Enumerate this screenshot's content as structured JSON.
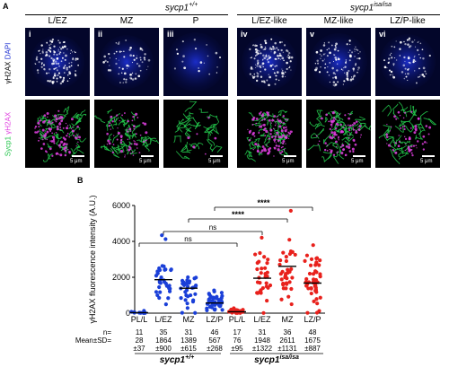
{
  "panel_a": {
    "label": "A",
    "geno_wt": "sycp1",
    "geno_wt_sup": "+/+",
    "geno_mut": "sycp1",
    "geno_mut_sup": "isa/isa",
    "stages": [
      "L/EZ",
      "MZ",
      "P",
      "L/EZ-like",
      "MZ-like",
      "LZ/P-like"
    ],
    "numerals": [
      "i",
      "ii",
      "iii",
      "iv",
      "v",
      "vi"
    ],
    "row1_a": "γH2AX",
    "row1_b": "DAPI",
    "row2_a": "Sycp1",
    "row2_b": "γH2AX",
    "scale": "5 μm",
    "colors": {
      "dapi": "#1c2fd0",
      "sycp1": "#22c44a",
      "h2ax": "#e040e0"
    }
  },
  "panel_b": {
    "label": "B",
    "n_label": "n=",
    "mean_label": "Mean±SD=",
    "geno_wt": "sycp1",
    "geno_wt_sup": "+/+",
    "geno_mut": "sycp1",
    "geno_mut_sup": "isa/isa",
    "sig": [
      "ns",
      "ns",
      "****",
      "****"
    ]
  },
  "chart_data": {
    "type": "scatter",
    "ylabel": "γH2AX fluorescence intensity (A.U.)",
    "ylim": [
      0,
      6000
    ],
    "yticks": [
      "0",
      "2000",
      "4000",
      "6000"
    ],
    "categories": [
      "PL/L",
      "L/EZ",
      "MZ",
      "LZ/P",
      "PL/L",
      "L/EZ",
      "MZ",
      "LZ/P"
    ],
    "groups": [
      "sycp1+/+",
      "sycp1+/+",
      "sycp1+/+",
      "sycp1+/+",
      "sycp1isa/isa",
      "sycp1isa/isa",
      "sycp1isa/isa",
      "sycp1isa/isa"
    ],
    "colors": [
      "#1a3fd8",
      "#1a3fd8",
      "#1a3fd8",
      "#1a3fd8",
      "#e8211c",
      "#e8211c",
      "#e8211c",
      "#e8211c"
    ],
    "n": [
      "11",
      "35",
      "31",
      "46",
      "17",
      "31",
      "36",
      "48"
    ],
    "mean": [
      28,
      1864,
      1389,
      567,
      76,
      1948,
      2611,
      1675
    ],
    "sd": [
      37,
      900,
      615,
      268,
      95,
      1322,
      1131,
      887
    ],
    "mean_text": [
      "28",
      "1864",
      "1389",
      "567",
      "76",
      "1948",
      "2611",
      "1675"
    ],
    "sd_text": [
      "±37",
      "±900",
      "±615",
      "±268",
      "±95",
      "±1322",
      "±1131",
      "±887"
    ],
    "comparisons": [
      {
        "from": 0,
        "to": 4,
        "label": "ns"
      },
      {
        "from": 1,
        "to": 5,
        "label": "ns"
      },
      {
        "from": 2,
        "to": 6,
        "label": "****"
      },
      {
        "from": 3,
        "to": 7,
        "label": "****"
      }
    ]
  }
}
